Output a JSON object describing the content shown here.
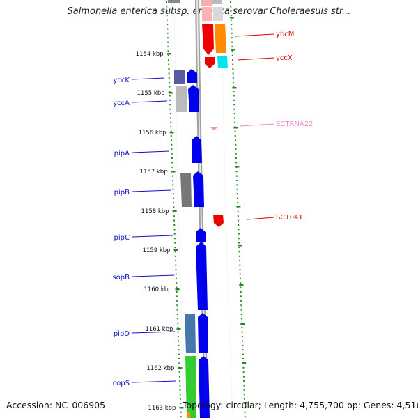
{
  "title": "Salmonella enterica subsp. enterica serovar Choleraesuis str...",
  "footer": {
    "accession": "Accession: NC_006905",
    "stats": "Topology: circular; Length: 4,755,700 bp; Genes: 4,516"
  },
  "colors": {
    "left_gene_label": "#1010c8",
    "right_gene_label": "#e00000",
    "rna_label": "#ee88cc",
    "ruler_tick": "#228822",
    "backbone": "#888888"
  },
  "ruler_labels": [
    "1154 kbp",
    "1155 kbp",
    "1156 kbp",
    "1157 kbp",
    "1158 kbp",
    "1159 kbp",
    "1160 kbp",
    "1161 kbp",
    "1162 kbp",
    "1163 kbp"
  ],
  "left_labels": [
    "yccK",
    "yccA",
    "pipA",
    "pipB",
    "pipC",
    "sopB",
    "pipD",
    "copS"
  ],
  "right_labels": [
    "ybcM",
    "yccX",
    "SCTRNA22",
    "SC1041"
  ]
}
